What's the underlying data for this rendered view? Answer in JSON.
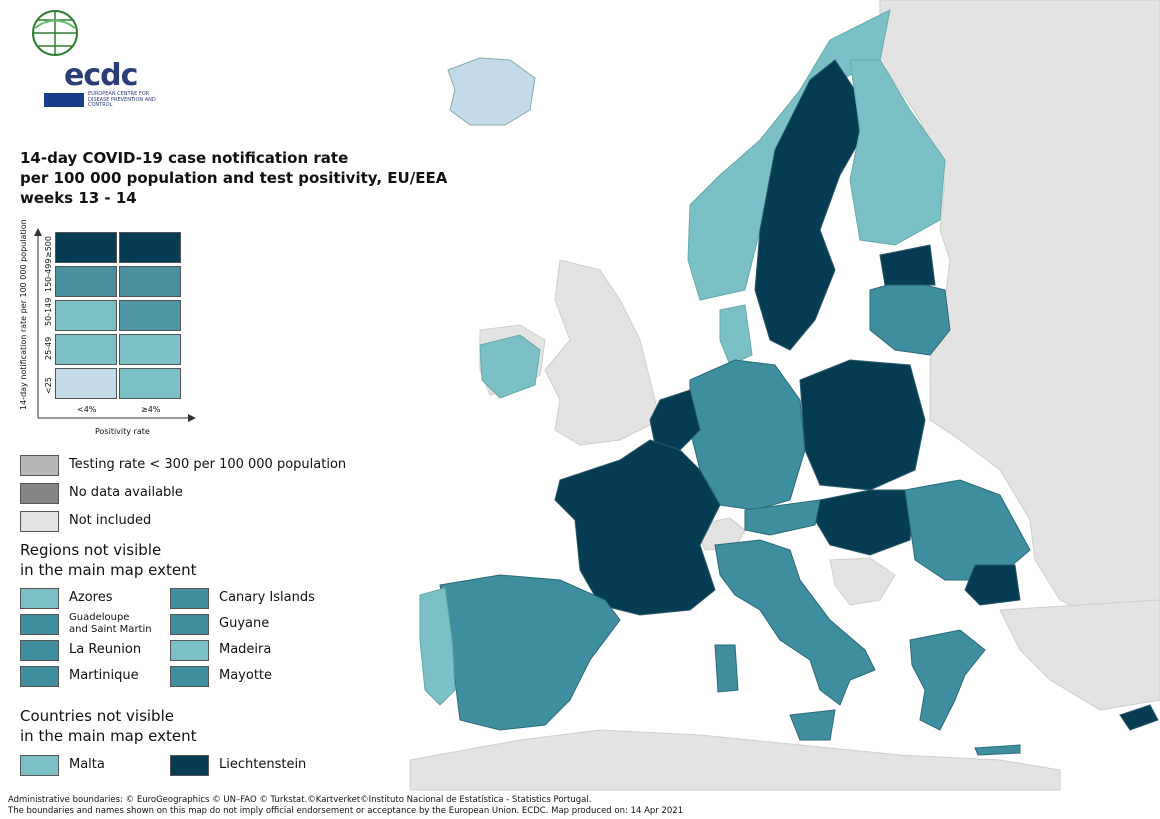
{
  "colors": {
    "sea": "#ffffff",
    "not_included": "#e3e3e3",
    "lt25_lt4": "#c3dbe9",
    "lt25_ge4": "#7ac0c6",
    "r25_49": "#7ac0c6",
    "r50_149_lt4": "#7ac0c6",
    "r50_149_ge4": "#4d97a6",
    "r150_499": "#4a8fa0",
    "ge500": "#053b53",
    "mid_teal": "#3e8ea0",
    "testing_low": "#b7b7b7",
    "no_data": "#858585"
  },
  "logo": {
    "name": "ecdc",
    "subtitle": "EUROPEAN CENTRE FOR DISEASE PREVENTION AND CONTROL"
  },
  "title": "14-day COVID-19 case notification rate\nper 100 000 population and test positivity, EU/EEA\nweeks 13 - 14",
  "legend": {
    "y_axis_title": "14-day notification rate per 100 000 population",
    "x_axis_title": "Positivity rate",
    "rows": [
      "≥500",
      "150-499",
      "50-149",
      "25-49",
      "<25"
    ],
    "cols": [
      "<4%",
      "≥4%"
    ],
    "matrix_colors": [
      [
        "#053b53",
        "#053b53"
      ],
      [
        "#4a8fa0",
        "#4a8fa0"
      ],
      [
        "#7ac0c6",
        "#4d97a6"
      ],
      [
        "#7ac0c6",
        "#7ac0c6"
      ],
      [
        "#c3dbe9",
        "#7ac0c6"
      ]
    ],
    "extra": [
      {
        "label": "Testing rate < 300 per 100 000 population",
        "color": "#b7b7b7"
      },
      {
        "label": "No data available",
        "color": "#858585"
      },
      {
        "label": "Not included",
        "color": "#e3e3e3"
      }
    ]
  },
  "regions_title": "Regions not visible\nin the main map extent",
  "regions": [
    {
      "label": "Azores",
      "color": "#7ac0c6"
    },
    {
      "label": "Canary Islands",
      "color": "#3e8ea0"
    },
    {
      "label": "Guadeloupe\nand Saint Martin",
      "color": "#3e8ea0"
    },
    {
      "label": "Guyane",
      "color": "#3e8ea0"
    },
    {
      "label": "La Reunion",
      "color": "#3e8ea0"
    },
    {
      "label": "Madeira",
      "color": "#7ac0c6"
    },
    {
      "label": "Martinique",
      "color": "#3e8ea0"
    },
    {
      "label": "Mayotte",
      "color": "#3e8ea0"
    }
  ],
  "countries_title": "Countries not visible\nin the main map extent",
  "countries": [
    {
      "label": "Malta",
      "color": "#7ac0c6"
    },
    {
      "label": "Liechtenstein",
      "color": "#053b53"
    }
  ],
  "footer": "Administrative boundaries: © EuroGeographics © UN–FAO © Turkstat.©Kartverket©Instituto Nacional de Estatística - Statistics Portugal.\nThe boundaries and names shown on this map do not imply official endorsement or acceptance by the European Union. ECDC. Map produced on: 14 Apr 2021"
}
